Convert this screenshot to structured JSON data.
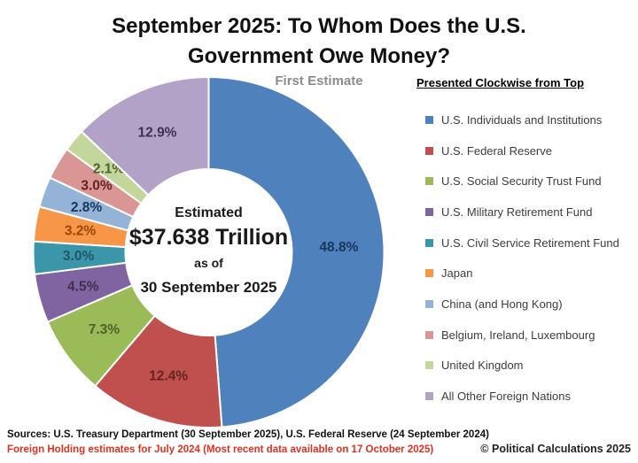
{
  "title": {
    "line1": "September 2025: To Whom Does the U.S.",
    "line2": "Government Owe Money?"
  },
  "subtitle": "First Estimate",
  "center": {
    "line1": "Estimated",
    "line2": "$37.638 Trillion",
    "line3": "as of",
    "line4": "30 September 2025"
  },
  "legend": {
    "header": "Presented Clockwise from Top"
  },
  "chart_data": {
    "type": "pie",
    "variant": "donut",
    "title": "September 2025: To Whom Does the U.S. Government Owe Money?",
    "subtitle": "First Estimate",
    "direction": "clockwise-from-top",
    "total_label": "Estimated $37.638 Trillion as of 30 September 2025",
    "legend_position": "right",
    "segments": [
      {
        "label": "U.S. Individuals and Institutions",
        "pct": 48.8,
        "pct_label": "48.8%",
        "color": "#4F81BD",
        "label_color": "#17375E"
      },
      {
        "label": "U.S. Federal Reserve",
        "pct": 12.4,
        "pct_label": "12.4%",
        "color": "#C0504D",
        "label_color": "#632423"
      },
      {
        "label": "U.S. Social Security Trust Fund",
        "pct": 7.3,
        "pct_label": "7.3%",
        "color": "#9BBB59",
        "label_color": "#4F6228"
      },
      {
        "label": "U.S. Military Retirement Fund",
        "pct": 4.5,
        "pct_label": "4.5%",
        "color": "#8064A2",
        "label_color": "#3F3151"
      },
      {
        "label": "U.S. Civil Service Retirement Fund",
        "pct": 3.0,
        "pct_label": "3.0%",
        "color": "#3A96A8",
        "label_color": "#215868"
      },
      {
        "label": "Japan",
        "pct": 3.2,
        "pct_label": "3.2%",
        "color": "#F79646",
        "label_color": "#974706"
      },
      {
        "label": "China (and Hong Kong)",
        "pct": 2.8,
        "pct_label": "2.8%",
        "color": "#95B3D7",
        "label_color": "#17375E"
      },
      {
        "label": "Belgium, Ireland, Luxembourg",
        "pct": 3.0,
        "pct_label": "3.0%",
        "color": "#D99694",
        "label_color": "#632423"
      },
      {
        "label": "United Kingdom",
        "pct": 2.1,
        "pct_label": "2.1%",
        "color": "#C3D69B",
        "label_color": "#4F6228"
      },
      {
        "label": "All Other Foreign Nations",
        "pct": 12.9,
        "pct_label": "12.9%",
        "color": "#B3A2C7",
        "label_color": "#3F3151"
      }
    ]
  },
  "footer": {
    "sources": "Sources: U.S. Treasury Department (30 September 2025), U.S. Federal Reserve (24 September 2024)",
    "note": "Foreign Holding estimates for July 2024 (Most recent data available on 17 October 2025)",
    "note_color": "#E0301E",
    "copyright": "© Political Calculations 2025"
  }
}
